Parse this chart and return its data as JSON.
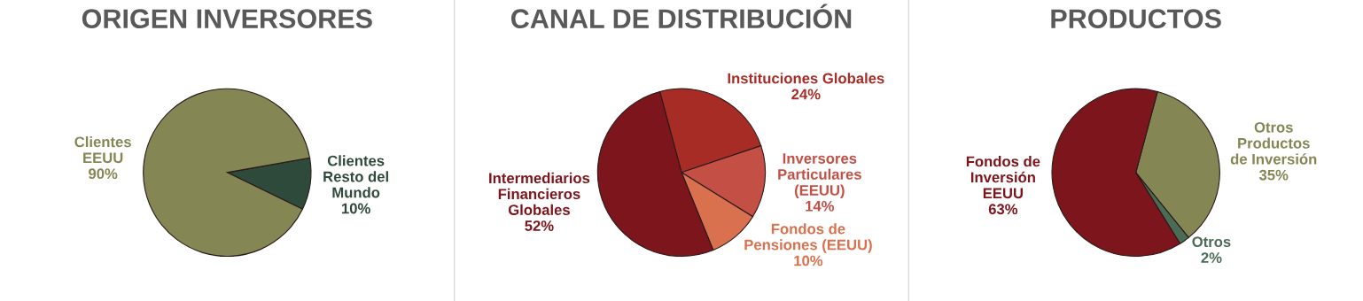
{
  "chart_data": [
    {
      "type": "pie",
      "title": "ORIGEN INVERSORES",
      "categories": [
        "Clientes\nResto del\nMundo",
        "Clientes\nEEUU"
      ],
      "values": [
        10,
        90
      ],
      "colors": [
        "#2e4a3a",
        "#848654"
      ],
      "value_labels": [
        "10%",
        "90%"
      ]
    },
    {
      "type": "pie",
      "title": "CANAL DE DISTRIBUCIÓN",
      "categories": [
        "Instituciones Globales",
        "Inversores\nParticulares\n(EEUU)",
        "Fondos de\nPensiones (EEUU)",
        "Intermediarios\nFinancieros\nGlobales"
      ],
      "values": [
        24,
        14,
        10,
        52
      ],
      "colors": [
        "#a82c26",
        "#c44f45",
        "#d9704e",
        "#7d161c"
      ],
      "value_labels": [
        "24%",
        "14%",
        "10%",
        "52%"
      ]
    },
    {
      "type": "pie",
      "title": "PRODUCTOS",
      "categories": [
        "Otros\nProductos\nde Inversión",
        "Otros",
        "Fondos de\nInversión\nEEUU"
      ],
      "values": [
        35,
        2,
        63
      ],
      "colors": [
        "#848654",
        "#4a6b55",
        "#7d161c"
      ],
      "value_labels": [
        "35%",
        "2%",
        "63%"
      ]
    }
  ]
}
